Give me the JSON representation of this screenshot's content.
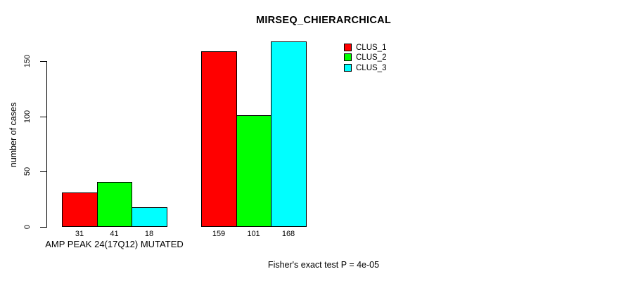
{
  "chart_data": {
    "type": "bar",
    "title": "MIRSEQ_CHIERARCHICAL",
    "ylabel": "number of cases",
    "xlabel": "",
    "ylim": [
      0,
      168
    ],
    "yticks": [
      0,
      50,
      100,
      150
    ],
    "grid": false,
    "legend_position": "top-right",
    "bar_border_color": "#000000",
    "series": [
      {
        "name": "CLUS_1",
        "color": "#ff0000"
      },
      {
        "name": "CLUS_2",
        "color": "#00ff00"
      },
      {
        "name": "CLUS_3",
        "color": "#00ffff"
      }
    ],
    "groups": [
      {
        "label": "AMP PEAK 24(17Q12) MUTATED",
        "values": [
          31,
          41,
          18
        ]
      },
      {
        "label": "",
        "values": [
          159,
          101,
          168
        ]
      }
    ],
    "bar_value_labels": true,
    "annotation": "Fisher's exact test P = 4e-05"
  }
}
